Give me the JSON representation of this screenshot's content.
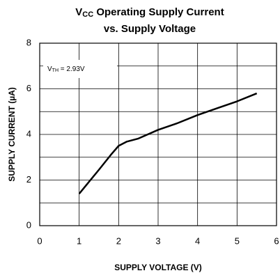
{
  "chart_data": {
    "type": "line",
    "title": {
      "symbol": "V",
      "subscript": "CC",
      "text": " Operating Supply Current",
      "line2": "vs. Supply Voltage"
    },
    "annotation": {
      "symbol": "V",
      "subscript": "TH",
      "text": " = 2.93V"
    },
    "xlabel": "SUPPLY VOLTAGE (V)",
    "ylabel": "SUPPLY CURRENT (µA)",
    "x": [
      1,
      1.5,
      1.8,
      2.0,
      2.2,
      2.5,
      3,
      3.5,
      4,
      4.5,
      5,
      5.5
    ],
    "series": [
      {
        "color": "#000000",
        "values": [
          1.4,
          2.45,
          3.1,
          3.5,
          3.68,
          3.82,
          4.2,
          4.5,
          4.85,
          5.15,
          5.45,
          5.8
        ]
      }
    ],
    "xlim": [
      0,
      6
    ],
    "xticks": [
      0,
      1,
      2,
      3,
      4,
      5,
      6
    ],
    "ylim": [
      0,
      8
    ],
    "yticks": [
      0,
      2,
      4,
      6,
      8
    ],
    "yminor_ticks": [
      1,
      3,
      5,
      7
    ],
    "grid": true
  }
}
